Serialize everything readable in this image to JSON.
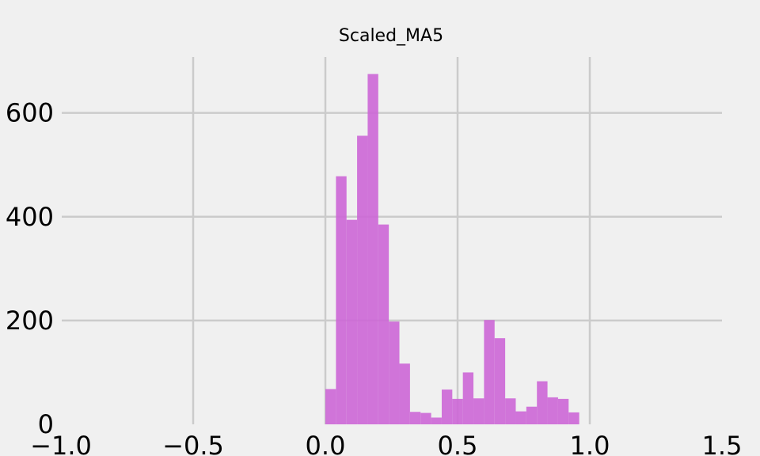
{
  "chart_data": {
    "type": "bar",
    "title": "Scaled_MA5",
    "xlabel": "",
    "ylabel": "",
    "xlim": [
      -1.0,
      1.5
    ],
    "ylim": [
      0,
      700
    ],
    "grid": true,
    "x_ticks": [
      "−1.0",
      "−0.5",
      "0.0",
      "0.5",
      "1.0",
      "1.5"
    ],
    "x_tick_values": [
      -1.0,
      -0.5,
      0.0,
      0.5,
      1.0,
      1.5
    ],
    "y_ticks": [
      "0",
      "200",
      "400",
      "600"
    ],
    "y_tick_values": [
      0,
      200,
      400,
      600
    ],
    "bin_width": 0.04,
    "bins": [
      {
        "x0": 0.0,
        "x1": 0.04,
        "value": 68
      },
      {
        "x0": 0.04,
        "x1": 0.08,
        "value": 478
      },
      {
        "x0": 0.08,
        "x1": 0.12,
        "value": 394
      },
      {
        "x0": 0.12,
        "x1": 0.16,
        "value": 556
      },
      {
        "x0": 0.16,
        "x1": 0.2,
        "value": 675
      },
      {
        "x0": 0.2,
        "x1": 0.24,
        "value": 385
      },
      {
        "x0": 0.24,
        "x1": 0.28,
        "value": 198
      },
      {
        "x0": 0.28,
        "x1": 0.32,
        "value": 117
      },
      {
        "x0": 0.32,
        "x1": 0.36,
        "value": 24
      },
      {
        "x0": 0.36,
        "x1": 0.4,
        "value": 22
      },
      {
        "x0": 0.4,
        "x1": 0.44,
        "value": 13
      },
      {
        "x0": 0.44,
        "x1": 0.48,
        "value": 67
      },
      {
        "x0": 0.48,
        "x1": 0.52,
        "value": 49
      },
      {
        "x0": 0.52,
        "x1": 0.56,
        "value": 100
      },
      {
        "x0": 0.56,
        "x1": 0.6,
        "value": 50
      },
      {
        "x0": 0.6,
        "x1": 0.64,
        "value": 201
      },
      {
        "x0": 0.64,
        "x1": 0.68,
        "value": 166
      },
      {
        "x0": 0.68,
        "x1": 0.72,
        "value": 50
      },
      {
        "x0": 0.72,
        "x1": 0.76,
        "value": 25
      },
      {
        "x0": 0.76,
        "x1": 0.8,
        "value": 34
      },
      {
        "x0": 0.8,
        "x1": 0.84,
        "value": 83
      },
      {
        "x0": 0.84,
        "x1": 0.88,
        "value": 52
      },
      {
        "x0": 0.88,
        "x1": 0.92,
        "value": 49
      },
      {
        "x0": 0.92,
        "x1": 0.96,
        "value": 23
      }
    ],
    "colors": {
      "bar": "#cc66d6",
      "grid": "#cbcbcb",
      "background": "#f0f0f0",
      "text": "#000000"
    }
  }
}
